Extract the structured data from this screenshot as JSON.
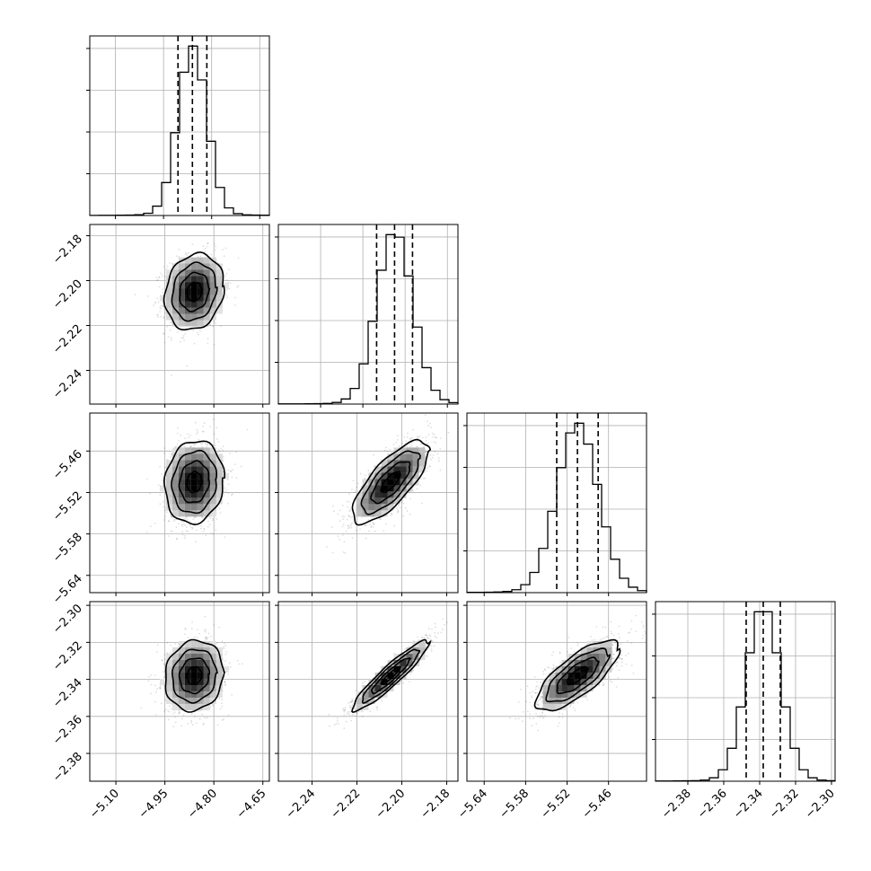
{
  "chart_data": {
    "type": "corner",
    "title": "",
    "parameters": [
      {
        "mean": -4.86,
        "sd": 0.045,
        "range": [
          -5.18,
          -4.63
        ],
        "hist_range": [
          -5.18,
          -4.62
        ],
        "ticks": [
          {
            "v": -5.1,
            "label": "−5.10"
          },
          {
            "v": -4.95,
            "label": "−4.95"
          },
          {
            "v": -4.8,
            "label": "−4.80"
          },
          {
            "v": -4.65,
            "label": "−4.65"
          }
        ],
        "quantiles": [
          -4.905,
          -4.86,
          -4.815
        ]
      },
      {
        "mean": -2.205,
        "sd": 0.0085,
        "range": [
          -2.255,
          -2.175
        ],
        "hist_range": [
          -2.26,
          -2.175
        ],
        "ticks": [
          {
            "v": -2.24,
            "label": "−2.24"
          },
          {
            "v": -2.22,
            "label": "−2.22"
          },
          {
            "v": -2.2,
            "label": "−2.20"
          },
          {
            "v": -2.18,
            "label": "−2.18"
          }
        ],
        "quantiles": [
          -2.2135,
          -2.205,
          -2.1965
        ]
      },
      {
        "mean": -5.505,
        "sd": 0.03,
        "range": [
          -5.665,
          -5.405
        ],
        "hist_range": [
          -5.665,
          -5.405
        ],
        "ticks": [
          {
            "v": -5.64,
            "label": "−5.64"
          },
          {
            "v": -5.58,
            "label": "−5.58"
          },
          {
            "v": -5.52,
            "label": "−5.52"
          },
          {
            "v": -5.46,
            "label": "−5.46"
          }
        ],
        "quantiles": [
          -5.535,
          -5.505,
          -5.475
        ]
      },
      {
        "mean": -2.338,
        "sd": 0.0095,
        "range": [
          -2.395,
          -2.298
        ],
        "hist_range": [
          -2.398,
          -2.298
        ],
        "ticks": [
          {
            "v": -2.38,
            "label": "−2.38"
          },
          {
            "v": -2.36,
            "label": "−2.36"
          },
          {
            "v": -2.34,
            "label": "−2.34"
          },
          {
            "v": -2.32,
            "label": "−2.32"
          },
          {
            "v": -2.3,
            "label": "−2.30"
          }
        ],
        "quantiles": [
          -2.3475,
          -2.338,
          -2.3285
        ],
        "row_ticks": [
          {
            "v": -2.3,
            "label": "−2.30"
          },
          {
            "v": -2.32,
            "label": "−2.32"
          },
          {
            "v": -2.34,
            "label": "−2.34"
          },
          {
            "v": -2.36,
            "label": "−2.36"
          },
          {
            "v": -2.38,
            "label": "−2.38"
          }
        ]
      }
    ],
    "row_tick_overrides": {
      "1": [
        {
          "v": -2.18,
          "label": "−2.18"
        },
        {
          "v": -2.2,
          "label": "−2.20"
        },
        {
          "v": -2.22,
          "label": "−2.22"
        },
        {
          "v": -2.24,
          "label": "−2.24"
        }
      ],
      "2": [
        {
          "v": -5.46,
          "label": "−5.46"
        },
        {
          "v": -5.52,
          "label": "−5.52"
        },
        {
          "v": -5.58,
          "label": "−5.58"
        },
        {
          "v": -5.64,
          "label": "−5.64"
        }
      ],
      "3": [
        {
          "v": -2.3,
          "label": "−2.30"
        },
        {
          "v": -2.32,
          "label": "−2.32"
        },
        {
          "v": -2.34,
          "label": "−2.34"
        },
        {
          "v": -2.36,
          "label": "−2.36"
        },
        {
          "v": -2.38,
          "label": "−2.38"
        }
      ]
    },
    "correlations": {
      "1-0": 0.15,
      "2-0": 0.1,
      "2-1": 0.75,
      "3-0": 0.1,
      "3-1": 0.93,
      "3-2": 0.75
    },
    "hist_bins": 20,
    "grid": true,
    "contour_levels_sigma": [
      0.5,
      1.0,
      1.5,
      2.0
    ],
    "scatter_points": 1200,
    "colors": {
      "line": "#000000",
      "grid": "#b0b0b0",
      "points": "#000000"
    }
  }
}
